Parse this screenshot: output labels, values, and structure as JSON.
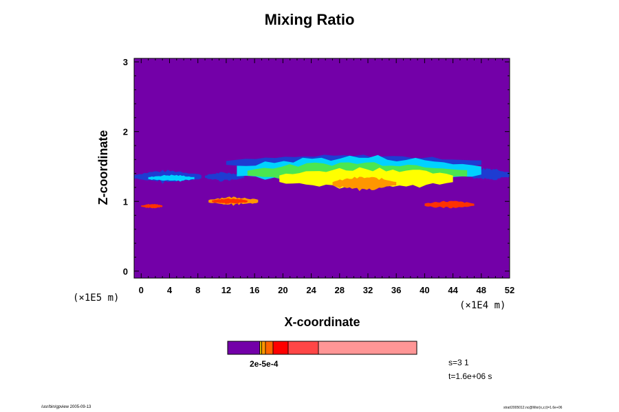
{
  "chart_data": {
    "type": "heatmap",
    "title": "Mixing Ratio",
    "xlabel": "X-coordinate",
    "ylabel": "Z-coordinate",
    "x_unit": "(×1E4 m)",
    "y_unit": "(×1E5 m)",
    "xlim": [
      -1,
      52
    ],
    "ylim": [
      -0.1,
      3.05
    ],
    "x_ticks": [
      "0",
      "4",
      "8",
      "12",
      "16",
      "20",
      "24",
      "28",
      "32",
      "36",
      "40",
      "44",
      "48",
      "52"
    ],
    "y_ticks": [
      "0",
      "1",
      "2",
      "3"
    ],
    "background_color": "#7300a8",
    "field_features": [
      {
        "level": "blue",
        "color": "#1e3cd2",
        "bands": [
          {
            "x0": -1,
            "x1": 8.5,
            "z": 1.35,
            "h": 0.17
          },
          {
            "x0": 9,
            "x1": 14.5,
            "z": 1.35,
            "h": 0.12
          },
          {
            "x0": 46,
            "x1": 52,
            "z": 1.38,
            "h": 0.18
          },
          {
            "x0": 12,
            "x1": 48,
            "z": 1.55,
            "h": 0.2
          }
        ]
      },
      {
        "level": "cyan",
        "color": "#00d2ff",
        "bands": [
          {
            "x0": 1,
            "x1": 7.5,
            "z": 1.33,
            "h": 0.09
          },
          {
            "x0": 13.5,
            "x1": 48,
            "z": 1.43,
            "h": 0.4
          }
        ]
      },
      {
        "level": "green",
        "color": "#4be650",
        "bands": [
          {
            "x0": 15,
            "x1": 46,
            "z": 1.4,
            "h": 0.3
          }
        ]
      },
      {
        "level": "yellow",
        "color": "#ffff00",
        "bands": [
          {
            "x0": 19.5,
            "x1": 44,
            "z": 1.32,
            "h": 0.3
          }
        ]
      },
      {
        "level": "orange",
        "color": "#ff9600",
        "bands": [
          {
            "x0": 9.5,
            "x1": 16.5,
            "z": 1.0,
            "h": 0.12
          },
          {
            "x0": 27,
            "x1": 36,
            "z": 1.25,
            "h": 0.18
          }
        ]
      },
      {
        "level": "red",
        "color": "#ff3200",
        "bands": [
          {
            "x0": 0,
            "x1": 3,
            "z": 0.93,
            "h": 0.06
          },
          {
            "x0": 10,
            "x1": 15,
            "z": 1.0,
            "h": 0.08
          },
          {
            "x0": 40,
            "x1": 47,
            "z": 0.95,
            "h": 0.1
          }
        ]
      }
    ],
    "colorbar": {
      "colors": [
        "#7300a8",
        "#f0c800",
        "#ff9600",
        "#ff6400",
        "#ff0000",
        "#ff4646",
        "#ff9696"
      ],
      "widths": [
        0.17,
        0.01,
        0.02,
        0.04,
        0.08,
        0.16,
        0.52
      ],
      "tick_label": "2e-5e-4"
    },
    "status": {
      "step": "s=3 1",
      "time": "t=1.6e+06 s"
    },
    "footer": {
      "left": "/usr/bin/gpview 2005-09-13",
      "right": "strat/2005012.nc@Mixr(x,z,t)=1.6e+06"
    }
  }
}
